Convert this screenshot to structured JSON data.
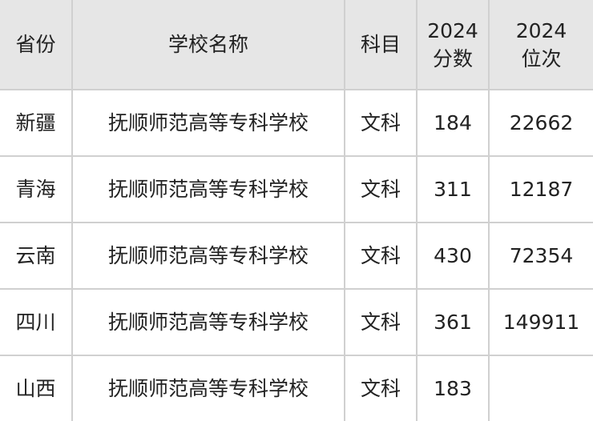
{
  "headers": [
    "省份",
    "学校名称",
    "科目",
    "2024\n分数",
    "2024\n位次"
  ],
  "header_lines": [
    [
      "省份"
    ],
    [
      "学校名称"
    ],
    [
      "科目"
    ],
    [
      "2024",
      "分数"
    ],
    [
      "2024",
      "位次"
    ]
  ],
  "rows": [
    [
      "新疆",
      "抚顺师范高等专科学校",
      "文科",
      "184",
      "22662"
    ],
    [
      "青海",
      "抚顺师范高等专科学校",
      "文科",
      "311",
      "12187"
    ],
    [
      "云南",
      "抚顺师范高等专科学校",
      "文科",
      "430",
      "72354"
    ],
    [
      "四川",
      "抚顺师范高等专科学校",
      "文科",
      "361",
      "149911"
    ],
    [
      "山西",
      "抚顺师范高等专科学校",
      "文科",
      "183",
      ""
    ]
  ]
}
